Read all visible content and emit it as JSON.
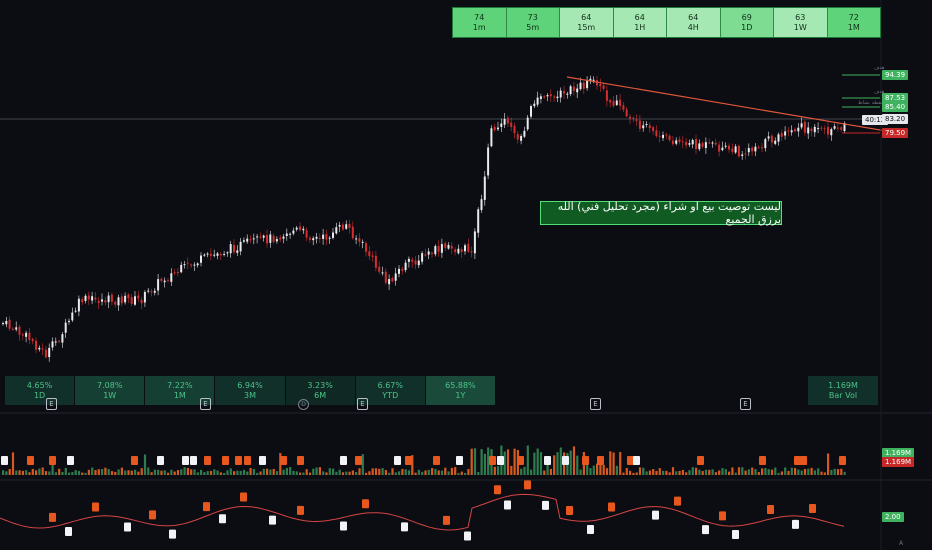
{
  "rsi_strip": {
    "cells": [
      {
        "value": "74",
        "timeframe": "1m",
        "color": "#5fd37a"
      },
      {
        "value": "73",
        "timeframe": "5m",
        "color": "#5fd37a"
      },
      {
        "value": "64",
        "timeframe": "15m",
        "color": "#a6e8b4"
      },
      {
        "value": "64",
        "timeframe": "1H",
        "color": "#a6e8b4"
      },
      {
        "value": "64",
        "timeframe": "4H",
        "color": "#a6e8b4"
      },
      {
        "value": "69",
        "timeframe": "1D",
        "color": "#7ddc92"
      },
      {
        "value": "63",
        "timeframe": "1W",
        "color": "#a6e8b4"
      },
      {
        "value": "72",
        "timeframe": "1M",
        "color": "#5fd37a"
      }
    ]
  },
  "perf_strip": {
    "cells": [
      {
        "value": "4.65%",
        "period": "1D",
        "bg": "#11302a"
      },
      {
        "value": "7.08%",
        "period": "1W",
        "bg": "#163f33"
      },
      {
        "value": "7.22%",
        "period": "1M",
        "bg": "#163f33"
      },
      {
        "value": "6.94%",
        "period": "3M",
        "bg": "#11302a"
      },
      {
        "value": "3.23%",
        "period": "6M",
        "bg": "#0f2824"
      },
      {
        "value": "6.67%",
        "period": "YTD",
        "bg": "#11302a"
      },
      {
        "value": "65.88%",
        "period": "1Y",
        "bg": "#1a4a3a"
      }
    ]
  },
  "bar_vol": {
    "value": "1.169M",
    "label": "Bar Vol"
  },
  "note": {
    "text": "ليست توصيت بيع او شراء (مجرد تحليل فني) الله يرزق الجميع"
  },
  "price_labels": [
    {
      "text": "94.39",
      "bg": "#3fb25f",
      "fg": "#ffffff"
    },
    {
      "text": "87.53",
      "bg": "#3fb25f",
      "fg": "#ffffff"
    },
    {
      "text": "85.40",
      "bg": "#3fb25f",
      "fg": "#ffffff"
    },
    {
      "text": "83.20",
      "bg": "#e6e8ee",
      "fg": "#101317"
    },
    {
      "text": "79.50",
      "bg": "#c62828",
      "fg": "#ffffff"
    },
    {
      "text": "40:12",
      "bg": "#e6e8ee",
      "fg": "#101317"
    }
  ],
  "level_notes": [
    "هدف",
    "هدف",
    "نقطة نشاط"
  ],
  "volume_labels": [
    {
      "text": "1.169M",
      "bg": "#3fb25f",
      "fg": "#ffffff"
    },
    {
      "text": "1.169M",
      "bg": "#c62828",
      "fg": "#ffffff"
    }
  ],
  "indicator_label": {
    "text": "2.00",
    "bg": "#3fb25f",
    "fg": "#ffffff"
  },
  "markers": {
    "earnings": "E",
    "dividend": "D"
  },
  "footer_glyph": "A",
  "colors": {
    "bull": "#e8eaee",
    "bear": "#d32f2f",
    "trendline": "#e0563a",
    "accent_green": "#3fb25f",
    "hline": "#7a808c"
  }
}
